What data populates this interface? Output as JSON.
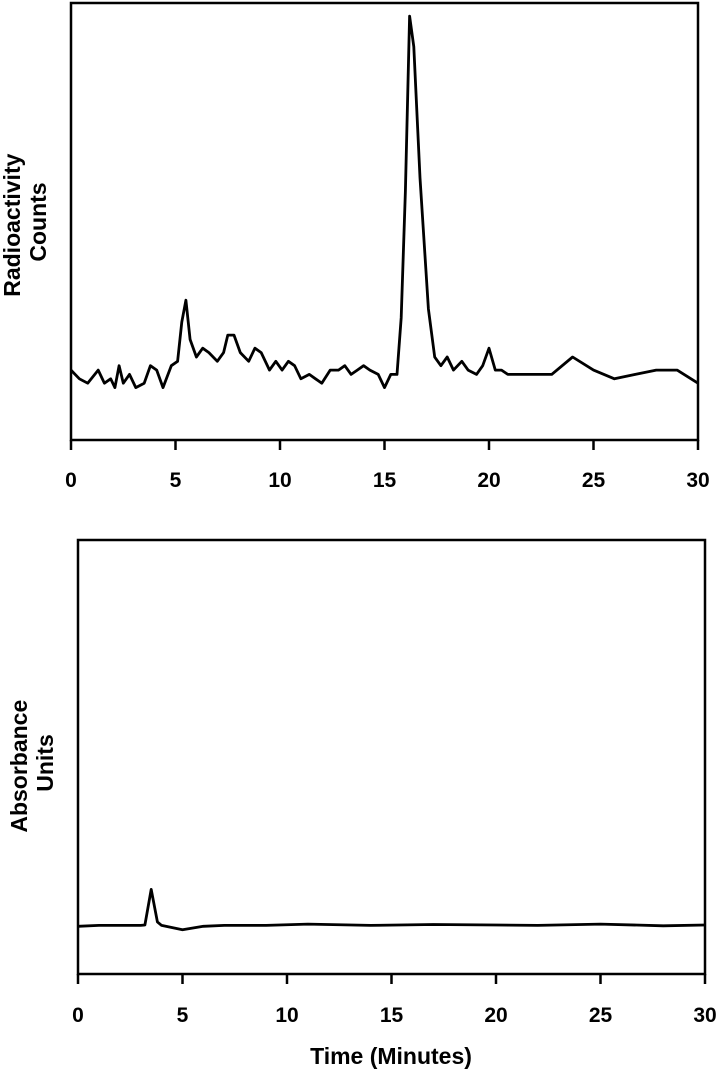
{
  "chart_data": [
    {
      "type": "line",
      "ylabel_lines": [
        "Radioactivity",
        "Counts"
      ],
      "xlabel": "",
      "xlim": [
        0,
        30
      ],
      "ylim": [
        0,
        100
      ],
      "grid": false,
      "x_ticks": [
        0,
        5,
        10,
        15,
        20,
        25,
        30
      ],
      "x_tick_labels": [
        "0",
        "5",
        "10",
        "15",
        "20",
        "25",
        "30"
      ],
      "series": [
        {
          "x": [
            0,
            0.4,
            0.8,
            1.3,
            1.6,
            1.9,
            2.1,
            2.3,
            2.5,
            2.8,
            3.1,
            3.5,
            3.8,
            4.1,
            4.4,
            4.8,
            5.1,
            5.3,
            5.5,
            5.7,
            6.0,
            6.3,
            6.6,
            7.0,
            7.3,
            7.5,
            7.8,
            8.1,
            8.5,
            8.8,
            9.1,
            9.5,
            9.8,
            10.1,
            10.4,
            10.7,
            11.0,
            11.4,
            11.7,
            12.0,
            12.4,
            12.8,
            13.1,
            13.4,
            13.7,
            14.0,
            14.3,
            14.7,
            15.0,
            15.3,
            15.6,
            15.8,
            16.0,
            16.2,
            16.4,
            16.7,
            17.1,
            17.4,
            17.7,
            18.0,
            18.3,
            18.7,
            19.0,
            19.4,
            19.7,
            20.0,
            20.3,
            20.6,
            20.9,
            21.5,
            22.0,
            23.0,
            24.0,
            25.0,
            26.0,
            27.0,
            28.0,
            29.0,
            30.0
          ],
          "y": [
            16,
            14,
            13,
            16,
            13,
            14,
            12,
            17,
            13,
            15,
            12,
            13,
            17,
            16,
            12,
            17,
            18,
            27,
            32,
            23,
            19,
            21,
            20,
            18,
            20,
            24,
            24,
            20,
            18,
            21,
            20,
            16,
            18,
            16,
            18,
            17,
            14,
            15,
            14,
            13,
            16,
            16,
            17,
            15,
            16,
            17,
            16,
            15,
            12,
            15,
            15,
            28,
            57,
            97,
            90,
            60,
            30,
            19,
            17,
            19,
            16,
            18,
            16,
            15,
            17,
            21,
            16,
            16,
            15,
            15,
            15,
            15,
            19,
            16,
            14,
            15,
            16,
            16,
            13
          ]
        }
      ]
    },
    {
      "type": "line",
      "ylabel_lines": [
        "Absorbance",
        "Units"
      ],
      "xlabel": "Time (Minutes)",
      "xlim": [
        0,
        30
      ],
      "ylim": [
        0,
        100
      ],
      "grid": false,
      "x_ticks": [
        0,
        5,
        10,
        15,
        20,
        25,
        30
      ],
      "x_tick_labels": [
        "0",
        "5",
        "10",
        "15",
        "20",
        "25",
        "30"
      ],
      "series": [
        {
          "x": [
            0,
            1,
            2,
            3,
            3.2,
            3.5,
            3.8,
            4.0,
            5.0,
            6.0,
            7.0,
            9.0,
            11.0,
            14.0,
            17.0,
            20.0,
            22.0,
            25.0,
            28.0,
            30.0
          ],
          "y": [
            11,
            11.2,
            11.2,
            11.2,
            11.3,
            19.5,
            12,
            11.2,
            10.2,
            11,
            11.2,
            11.2,
            11.5,
            11.2,
            11.4,
            11.3,
            11.2,
            11.5,
            11.1,
            11.3
          ]
        }
      ]
    }
  ]
}
